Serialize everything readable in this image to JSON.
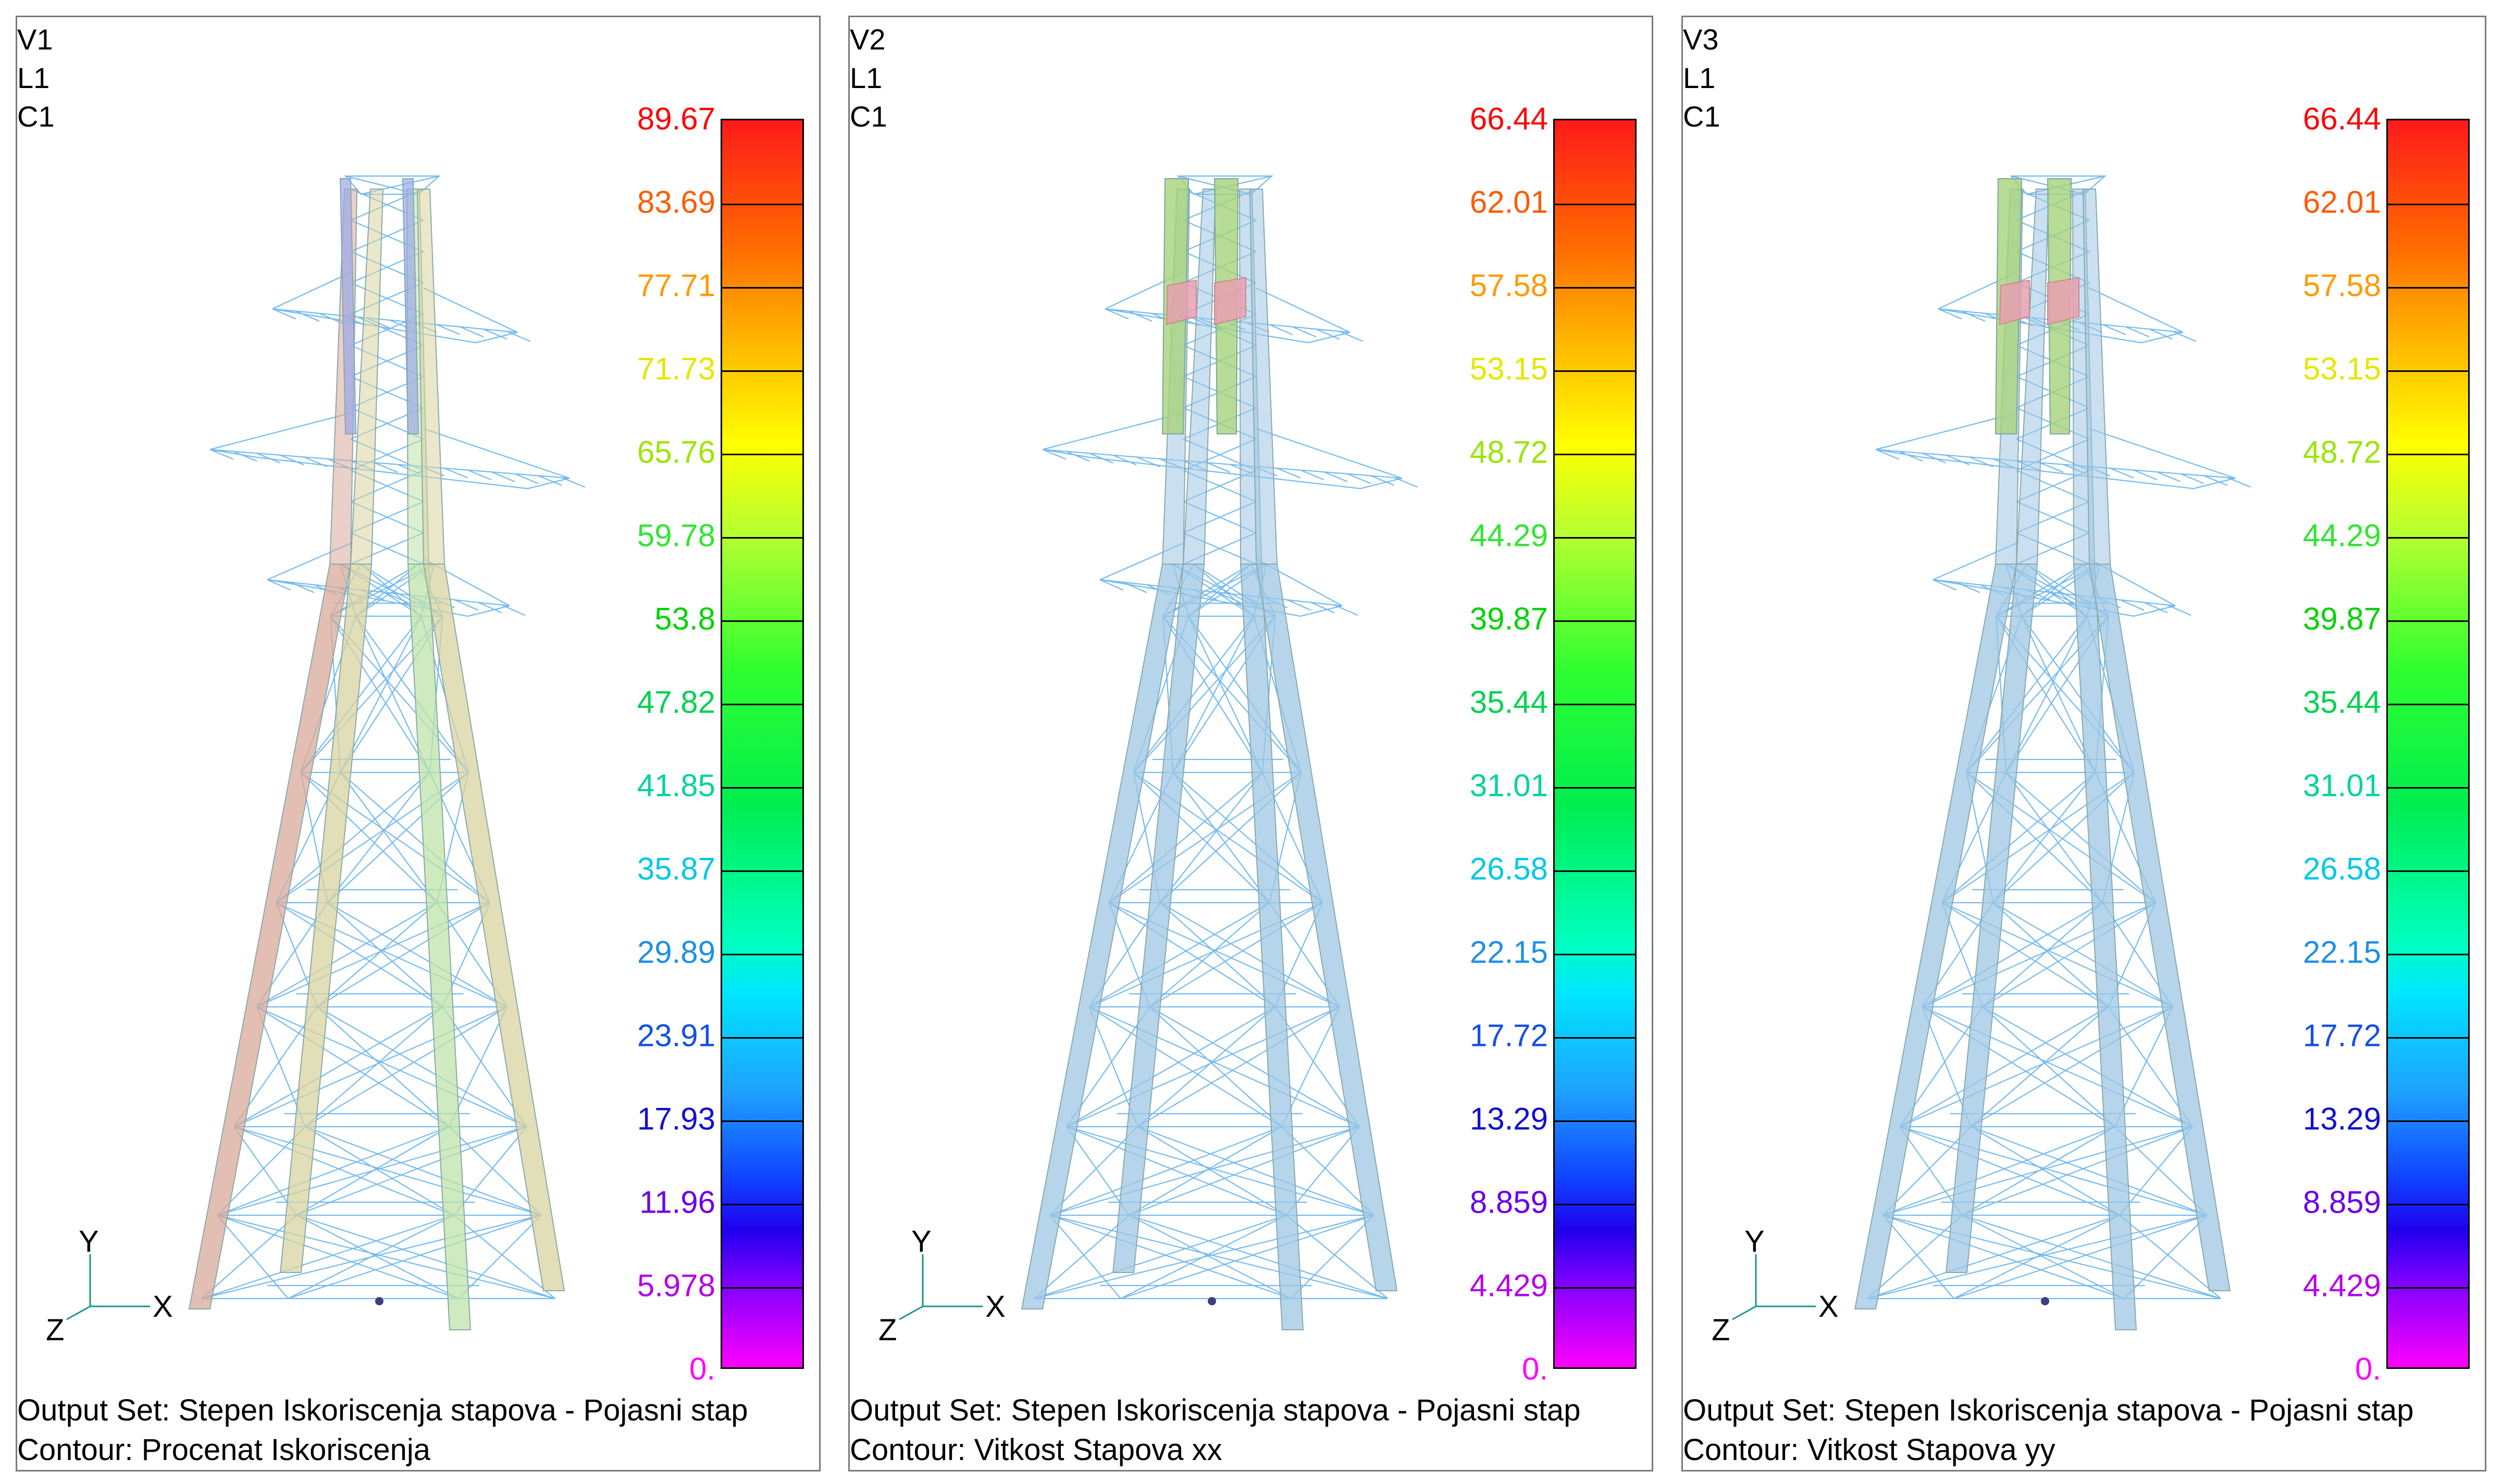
{
  "panels": [
    {
      "header": [
        "V1",
        "L1",
        "C1"
      ],
      "legend": [
        "89.67",
        "83.69",
        "77.71",
        "71.73",
        "65.76",
        "59.78",
        "53.8",
        "47.82",
        "41.85",
        "35.87",
        "29.89",
        "23.91",
        "17.93",
        "11.96",
        "5.978",
        "0."
      ],
      "output_set": "Output Set: Stepen Iskoriscenja stapova - Pojasni stap",
      "contour": "Contour: Procenat Iskoriscenja"
    },
    {
      "header": [
        "V2",
        "L1",
        "C1"
      ],
      "legend": [
        "66.44",
        "62.01",
        "57.58",
        "53.15",
        "48.72",
        "44.29",
        "39.87",
        "35.44",
        "31.01",
        "26.58",
        "22.15",
        "17.72",
        "13.29",
        "8.859",
        "4.429",
        "0."
      ],
      "output_set": "Output Set: Stepen Iskoriscenja stapova - Pojasni stap",
      "contour": "Contour: Vitkost Stapova xx"
    },
    {
      "header": [
        "V3",
        "L1",
        "C1"
      ],
      "legend": [
        "66.44",
        "62.01",
        "57.58",
        "53.15",
        "48.72",
        "44.29",
        "39.87",
        "35.44",
        "31.01",
        "26.58",
        "22.15",
        "17.72",
        "13.29",
        "8.859",
        "4.429",
        "0."
      ],
      "output_set": "Output Set: Stepen Iskoriscenja stapova - Pojasni stap",
      "contour": "Contour: Vitkost Stapova yy"
    }
  ],
  "label_colors": [
    "#ff0000",
    "#ff5a00",
    "#ff9a00",
    "#e6e600",
    "#9ae600",
    "#30e630",
    "#00d200",
    "#00d250",
    "#00d2a0",
    "#00c8e6",
    "#1e90e6",
    "#1450e6",
    "#1010d2",
    "#6a00e6",
    "#b400e6",
    "#ff00ff"
  ],
  "axes": {
    "y": "Y",
    "x": "X",
    "z": "Z"
  },
  "colors": {
    "mesh": "#66b3ef",
    "leg_v1_left": "#d9a99a",
    "leg_v1_mid": "#d8d3a0",
    "leg_v1_right": "#bfe3a8",
    "leg_v2": "#9ec7e4",
    "top_green": "#a6d27a",
    "top_pink": "#e8a0b0"
  }
}
